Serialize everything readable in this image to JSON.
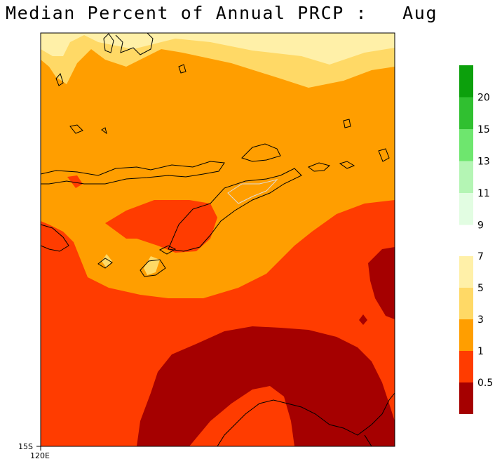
{
  "title": "Median Percent of Annual PRCP :   Aug",
  "axis": {
    "lat_label": "15S",
    "lon_label": "120E"
  },
  "legend": {
    "upper": [
      {
        "label": "",
        "color": "#0ca00c"
      },
      {
        "label": "20",
        "color": "#30c030"
      },
      {
        "label": "15",
        "color": "#6ee66e"
      },
      {
        "label": "13",
        "color": "#b4f5b4"
      },
      {
        "label": "11",
        "color": "#e2fde2"
      }
    ],
    "upper_bottom_label": "9",
    "lower": [
      {
        "label": "7",
        "color": "#fff0a8"
      },
      {
        "label": "5",
        "color": "#ffd966"
      },
      {
        "label": "3",
        "color": "#ff9e00"
      },
      {
        "label": "1",
        "color": "#ff3c00"
      },
      {
        "label": "0.5",
        "color": "#a50000"
      }
    ]
  },
  "colors": {
    "lightyellow": "#fff0a8",
    "yellow": "#ffd966",
    "orange": "#ff9e00",
    "red": "#ff3c00",
    "darkred": "#a50000",
    "coast": "#000000"
  }
}
